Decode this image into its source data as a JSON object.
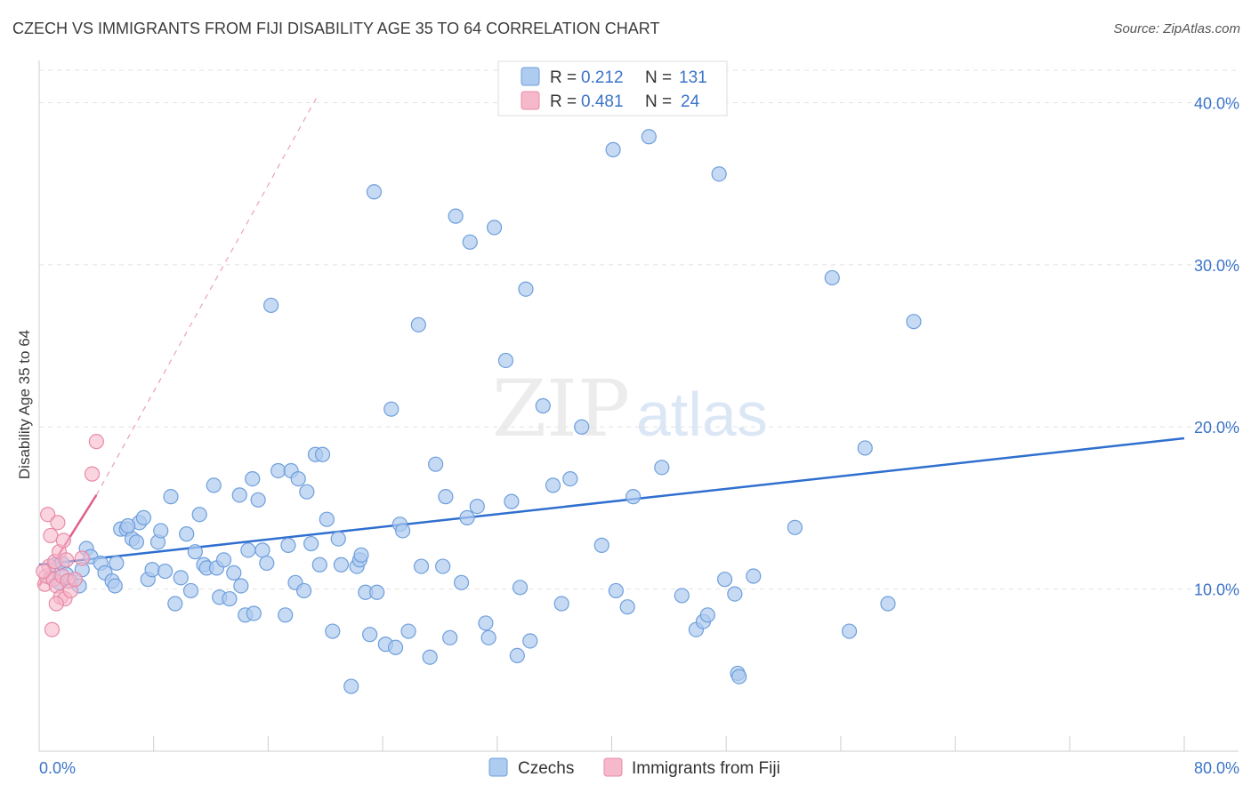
{
  "header": {
    "title": "CZECH VS IMMIGRANTS FROM FIJI DISABILITY AGE 35 TO 64 CORRELATION CHART",
    "source": "Source: ZipAtlas.com"
  },
  "watermark": {
    "zip": "ZIP",
    "atlas": "atlas"
  },
  "legend": {
    "czechs": {
      "r_label": "R =",
      "r_value": "0.212",
      "n_label": "N =",
      "n_value": "131"
    },
    "fiji": {
      "r_label": "R =",
      "r_value": "0.481",
      "n_label": "N =",
      "n_value": "24"
    }
  },
  "bottom_legend": {
    "czechs": "Czechs",
    "fiji": "Immigrants from Fiji"
  },
  "colors": {
    "czechs_fill": "#aecbf0",
    "czechs_stroke": "#6e9fdc",
    "czechs_line": "#2f6fcf",
    "fiji_fill": "#f6b9cb",
    "fiji_stroke": "#e88aa6",
    "fiji_line": "#e0618b",
    "tick_label": "#3b74c9",
    "grid": "#e2e2e2"
  },
  "chart_data": {
    "type": "scatter",
    "title": "CZECH VS IMMIGRANTS FROM FIJI DISABILITY AGE 35 TO 64 CORRELATION CHART",
    "xlabel": "",
    "ylabel": "Disability Age 35 to 64",
    "xlim": [
      0,
      80
    ],
    "ylim": [
      0,
      42
    ],
    "x_tick_labels": [
      "0.0%",
      "80.0%"
    ],
    "y_ticks": [
      10,
      20,
      30,
      40
    ],
    "y_tick_labels": [
      "10.0%",
      "20.0%",
      "30.0%",
      "40.0%"
    ],
    "grid": true,
    "legend_position": "top-center",
    "series": [
      {
        "name": "Czechs",
        "R": 0.212,
        "N": 131,
        "trend": {
          "x": [
            0,
            80
          ],
          "y": [
            11.5,
            19.3
          ]
        },
        "points": [
          [
            0.8,
            10.7
          ],
          [
            1.1,
            11.5
          ],
          [
            1.4,
            10.4
          ],
          [
            1.6,
            11.6
          ],
          [
            1.9,
            10.9
          ],
          [
            2.2,
            10.5
          ],
          [
            2.8,
            10.2
          ],
          [
            3.0,
            11.2
          ],
          [
            3.3,
            12.5
          ],
          [
            3.6,
            12.0
          ],
          [
            4.3,
            11.6
          ],
          [
            4.6,
            11.0
          ],
          [
            5.1,
            10.5
          ],
          [
            5.3,
            10.2
          ],
          [
            5.4,
            11.6
          ],
          [
            5.7,
            13.7
          ],
          [
            6.1,
            13.7
          ],
          [
            6.5,
            13.1
          ],
          [
            6.8,
            12.9
          ],
          [
            7.0,
            14.1
          ],
          [
            7.3,
            14.4
          ],
          [
            7.6,
            10.6
          ],
          [
            7.9,
            11.2
          ],
          [
            8.3,
            12.9
          ],
          [
            8.5,
            13.6
          ],
          [
            8.8,
            11.1
          ],
          [
            9.2,
            15.7
          ],
          [
            9.5,
            9.1
          ],
          [
            9.9,
            10.7
          ],
          [
            10.3,
            13.4
          ],
          [
            10.6,
            9.9
          ],
          [
            10.9,
            12.3
          ],
          [
            11.2,
            14.6
          ],
          [
            11.5,
            11.5
          ],
          [
            11.7,
            11.3
          ],
          [
            12.2,
            16.4
          ],
          [
            12.4,
            11.3
          ],
          [
            12.6,
            9.5
          ],
          [
            12.9,
            11.8
          ],
          [
            13.3,
            9.4
          ],
          [
            13.6,
            11.0
          ],
          [
            14.0,
            15.8
          ],
          [
            14.1,
            10.2
          ],
          [
            14.4,
            8.4
          ],
          [
            14.9,
            16.8
          ],
          [
            15.0,
            8.5
          ],
          [
            15.3,
            15.5
          ],
          [
            15.6,
            12.4
          ],
          [
            15.9,
            11.6
          ],
          [
            16.2,
            27.5
          ],
          [
            16.7,
            17.3
          ],
          [
            17.2,
            8.4
          ],
          [
            17.4,
            12.7
          ],
          [
            17.6,
            17.3
          ],
          [
            17.9,
            10.4
          ],
          [
            18.1,
            16.8
          ],
          [
            18.5,
            9.9
          ],
          [
            18.7,
            16.0
          ],
          [
            19.0,
            12.8
          ],
          [
            19.3,
            18.3
          ],
          [
            19.6,
            11.5
          ],
          [
            19.8,
            18.3
          ],
          [
            20.1,
            14.3
          ],
          [
            20.5,
            7.4
          ],
          [
            20.9,
            13.1
          ],
          [
            21.1,
            11.5
          ],
          [
            21.8,
            4.0
          ],
          [
            22.2,
            11.4
          ],
          [
            22.4,
            11.8
          ],
          [
            22.8,
            9.8
          ],
          [
            23.1,
            7.2
          ],
          [
            23.4,
            34.5
          ],
          [
            23.6,
            9.8
          ],
          [
            24.2,
            6.6
          ],
          [
            24.6,
            21.1
          ],
          [
            24.9,
            6.4
          ],
          [
            25.2,
            14.0
          ],
          [
            25.4,
            13.6
          ],
          [
            25.8,
            7.4
          ],
          [
            26.5,
            26.3
          ],
          [
            26.7,
            11.4
          ],
          [
            27.3,
            5.8
          ],
          [
            27.7,
            17.7
          ],
          [
            28.2,
            11.4
          ],
          [
            28.4,
            15.7
          ],
          [
            28.7,
            7.0
          ],
          [
            29.1,
            33.0
          ],
          [
            29.5,
            10.4
          ],
          [
            29.9,
            14.4
          ],
          [
            30.1,
            31.4
          ],
          [
            30.6,
            15.1
          ],
          [
            31.2,
            7.9
          ],
          [
            31.4,
            7.0
          ],
          [
            31.8,
            32.3
          ],
          [
            32.6,
            24.1
          ],
          [
            33.0,
            15.4
          ],
          [
            33.4,
            5.9
          ],
          [
            33.6,
            10.1
          ],
          [
            34.0,
            28.5
          ],
          [
            34.3,
            6.8
          ],
          [
            35.2,
            21.3
          ],
          [
            35.9,
            16.4
          ],
          [
            36.5,
            9.1
          ],
          [
            37.1,
            16.8
          ],
          [
            37.9,
            20.0
          ],
          [
            39.3,
            12.7
          ],
          [
            40.1,
            37.1
          ],
          [
            40.3,
            9.9
          ],
          [
            41.1,
            8.9
          ],
          [
            41.5,
            15.7
          ],
          [
            42.6,
            37.9
          ],
          [
            43.5,
            17.5
          ],
          [
            44.9,
            9.6
          ],
          [
            45.9,
            7.5
          ],
          [
            46.4,
            8.0
          ],
          [
            46.7,
            8.4
          ],
          [
            47.5,
            35.6
          ],
          [
            47.9,
            10.6
          ],
          [
            48.6,
            9.7
          ],
          [
            48.8,
            4.8
          ],
          [
            48.9,
            4.6
          ],
          [
            49.9,
            10.8
          ],
          [
            52.8,
            13.8
          ],
          [
            55.4,
            29.2
          ],
          [
            56.6,
            7.4
          ],
          [
            57.7,
            18.7
          ],
          [
            59.3,
            9.1
          ],
          [
            61.1,
            26.5
          ],
          [
            14.6,
            12.4
          ],
          [
            6.2,
            13.9
          ],
          [
            22.5,
            12.1
          ]
        ]
      },
      {
        "name": "Immigrants from Fiji",
        "R": 0.481,
        "N": 24,
        "trend": {
          "x": [
            0,
            4.0
          ],
          "y": [
            10.2,
            15.8
          ]
        },
        "trend_extension": {
          "x": [
            4.0,
            19.5
          ],
          "y": [
            15.8,
            40.5
          ]
        },
        "points": [
          [
            0.4,
            10.3
          ],
          [
            0.5,
            10.8
          ],
          [
            0.6,
            14.6
          ],
          [
            0.7,
            11.4
          ],
          [
            0.8,
            13.3
          ],
          [
            0.9,
            7.5
          ],
          [
            1.0,
            10.6
          ],
          [
            1.1,
            11.7
          ],
          [
            1.2,
            10.2
          ],
          [
            1.3,
            14.1
          ],
          [
            1.4,
            12.3
          ],
          [
            1.5,
            9.5
          ],
          [
            1.6,
            10.8
          ],
          [
            1.7,
            13.0
          ],
          [
            1.8,
            9.4
          ],
          [
            1.9,
            11.8
          ],
          [
            2.0,
            10.5
          ],
          [
            2.2,
            9.9
          ],
          [
            2.5,
            10.6
          ],
          [
            3.0,
            11.9
          ],
          [
            3.7,
            17.1
          ],
          [
            4.0,
            19.1
          ],
          [
            0.3,
            11.1
          ],
          [
            1.2,
            9.1
          ]
        ]
      }
    ]
  }
}
